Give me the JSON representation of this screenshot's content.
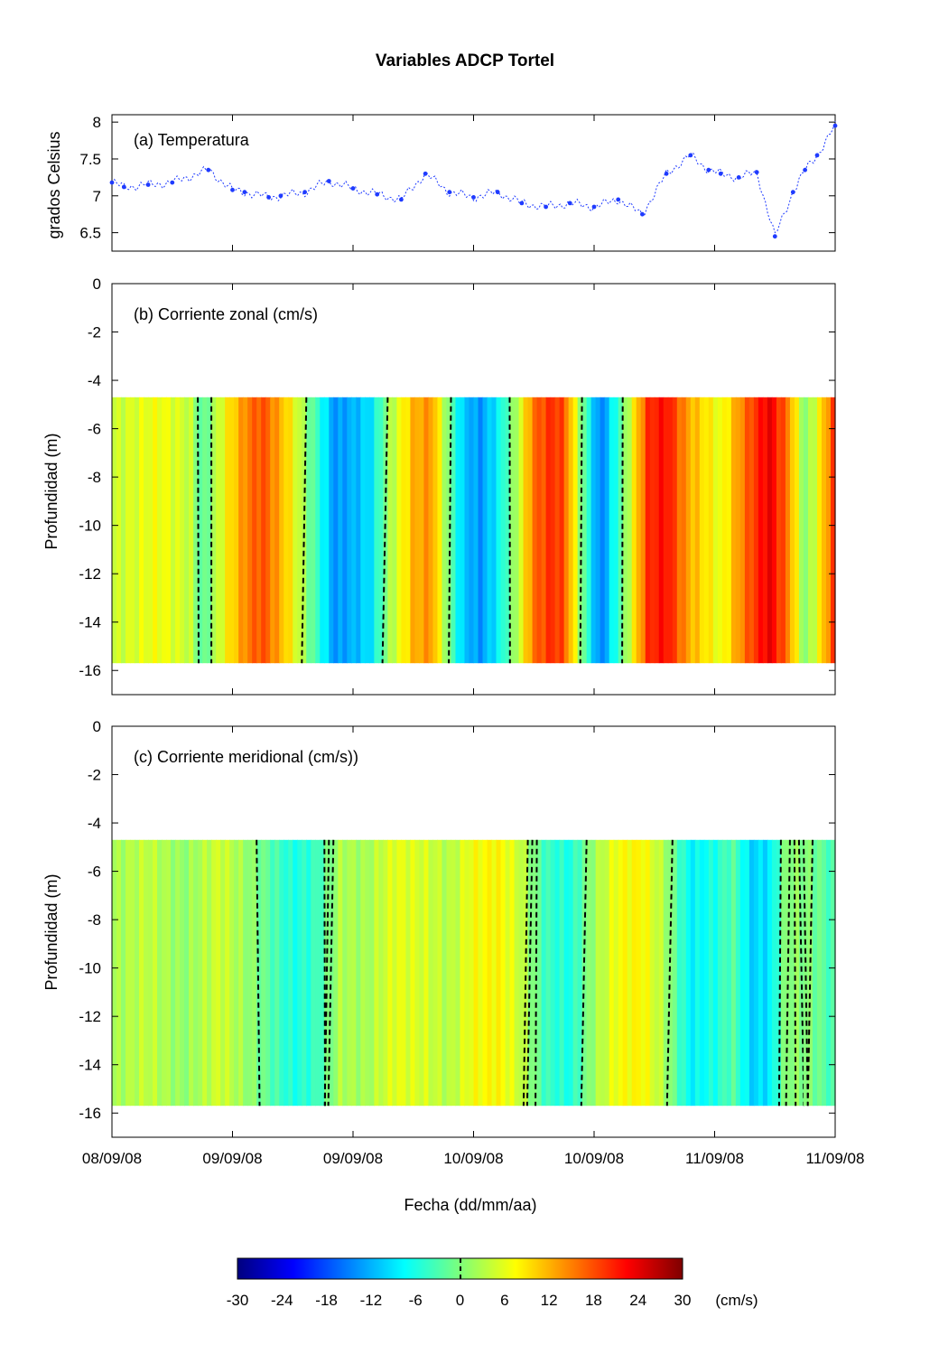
{
  "title": "Variables ADCP Tortel",
  "xlabel": "Fecha (dd/mm/aa)",
  "x_ticks": [
    "08/09/08",
    "09/09/08",
    "09/09/08",
    "10/09/08",
    "10/09/08",
    "11/09/08",
    "11/09/08"
  ],
  "colorbar": {
    "ticks": [
      "-30",
      "-24",
      "-18",
      "-12",
      "-6",
      "0",
      "6",
      "12",
      "18",
      "24",
      "30"
    ],
    "unit": "(cm/s)",
    "range": [
      -30,
      30
    ],
    "colormap": "jet",
    "zero_contour": "dashed black line"
  },
  "colors": {
    "marker": "#1f3bff",
    "contour": "#000000"
  },
  "chart_data": [
    {
      "type": "scatter",
      "panel_label": "(a) Temperatura",
      "ylabel": "grados Celsius",
      "y_ticks": [
        "6.5",
        "7",
        "7.5",
        "8"
      ],
      "ylim": [
        6.25,
        8.1
      ],
      "xlim": [
        0,
        6
      ],
      "x_unit": "tick interval (half day)",
      "series": [
        {
          "x": [
            0,
            0.1,
            0.3,
            0.5,
            0.8,
            1.0,
            1.1,
            1.3,
            1.4,
            1.6,
            1.8,
            2.0,
            2.2,
            2.4,
            2.6,
            2.8,
            3.0,
            3.2,
            3.4,
            3.6,
            3.8,
            4.0,
            4.2,
            4.4,
            4.6,
            4.8,
            4.95,
            5.05,
            5.2,
            5.35,
            5.5,
            5.65,
            5.75,
            5.85,
            6.0
          ],
          "values": [
            7.18,
            7.12,
            7.15,
            7.18,
            7.35,
            7.08,
            7.05,
            6.98,
            7.0,
            7.05,
            7.2,
            7.1,
            7.02,
            6.95,
            7.3,
            7.05,
            6.98,
            7.05,
            6.9,
            6.85,
            6.9,
            6.85,
            6.95,
            6.75,
            7.3,
            7.55,
            7.35,
            7.3,
            7.25,
            7.32,
            6.45,
            7.05,
            7.35,
            7.55,
            7.95
          ]
        }
      ]
    },
    {
      "type": "heatmap",
      "panel_label": "(b) Corriente zonal (cm/s)",
      "ylabel": "Profundidad (m)",
      "y_ticks": [
        "0",
        "-2",
        "-4",
        "-6",
        "-8",
        "-10",
        "-12",
        "-14",
        "-16"
      ],
      "ylim": [
        -17,
        0
      ],
      "data_depth_range": [
        -15.7,
        -4.7
      ],
      "x": [
        0.0,
        0.4,
        0.65,
        0.75,
        0.95,
        1.15,
        1.25,
        1.45,
        1.7,
        1.85,
        2.0,
        2.15,
        2.3,
        2.5,
        2.65,
        2.75,
        2.9,
        3.05,
        3.2,
        3.35,
        3.5,
        3.65,
        3.75,
        3.9,
        4.05,
        4.25,
        4.45,
        4.6,
        4.8,
        5.05,
        5.25,
        5.45,
        5.6,
        5.75,
        5.85,
        6.0
      ],
      "values": [
        4,
        7,
        4,
        -3,
        8,
        16,
        18,
        10,
        -4,
        -14,
        -12,
        -9,
        2,
        12,
        14,
        4,
        -10,
        -14,
        -8,
        2,
        16,
        20,
        18,
        0,
        -16,
        0,
        20,
        22,
        12,
        6,
        16,
        24,
        16,
        0,
        6,
        20
      ]
    },
    {
      "type": "heatmap",
      "panel_label": "(c) Corriente meridional (cm/s))",
      "ylabel": "Profundidad (m)",
      "y_ticks": [
        "0",
        "-2",
        "-4",
        "-6",
        "-8",
        "-10",
        "-12",
        "-14",
        "-16"
      ],
      "ylim": [
        -17,
        0
      ],
      "data_depth_range": [
        -15.7,
        -4.7
      ],
      "x": [
        0.0,
        0.3,
        0.6,
        0.9,
        1.2,
        1.5,
        1.7,
        1.9,
        2.1,
        2.35,
        2.6,
        2.8,
        3.0,
        3.2,
        3.4,
        3.6,
        3.8,
        4.0,
        4.2,
        4.4,
        4.6,
        4.8,
        5.0,
        5.15,
        5.3,
        5.45,
        5.6,
        5.8,
        6.0
      ],
      "values": [
        2,
        4,
        1,
        5,
        0,
        -6,
        -4,
        3,
        2,
        6,
        5,
        3,
        7,
        8,
        4,
        -4,
        -6,
        2,
        7,
        8,
        2,
        -8,
        -6,
        -2,
        -10,
        -9,
        1,
        0,
        -4
      ]
    }
  ]
}
